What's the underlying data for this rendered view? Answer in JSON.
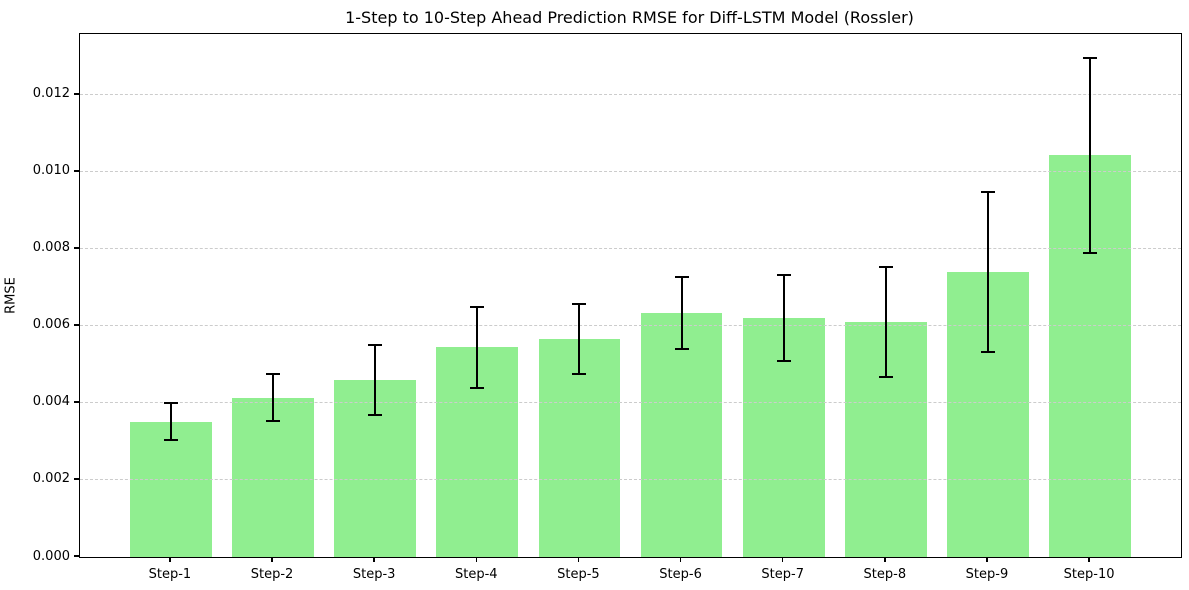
{
  "chart_data": {
    "type": "bar",
    "title": "1-Step to 10-Step Ahead Prediction RMSE for Diff-LSTM Model (Rossler)",
    "xlabel": "",
    "ylabel": "RMSE",
    "categories": [
      "Step-1",
      "Step-2",
      "Step-3",
      "Step-4",
      "Step-5",
      "Step-6",
      "Step-7",
      "Step-8",
      "Step-9",
      "Step-10"
    ],
    "values": [
      0.00351,
      0.00414,
      0.0046,
      0.00545,
      0.00567,
      0.00633,
      0.0062,
      0.0061,
      0.00739,
      0.01043
    ],
    "errors": [
      0.00048,
      0.00062,
      0.0009,
      0.00105,
      0.00091,
      0.00094,
      0.00111,
      0.00143,
      0.00208,
      0.00253
    ],
    "ylim": [
      0,
      0.01358
    ],
    "yticks": {
      "values": [
        0,
        0.002,
        0.004,
        0.006,
        0.008,
        0.01,
        0.012
      ],
      "labels": [
        "0.000",
        "0.002",
        "0.004",
        "0.006",
        "0.008",
        "0.010",
        "0.012"
      ]
    },
    "grid": "horizontal-dashed",
    "legend": "none",
    "bar_color": "#90ee90",
    "error_color": "#000000",
    "gridline_color": "#cccccc"
  }
}
